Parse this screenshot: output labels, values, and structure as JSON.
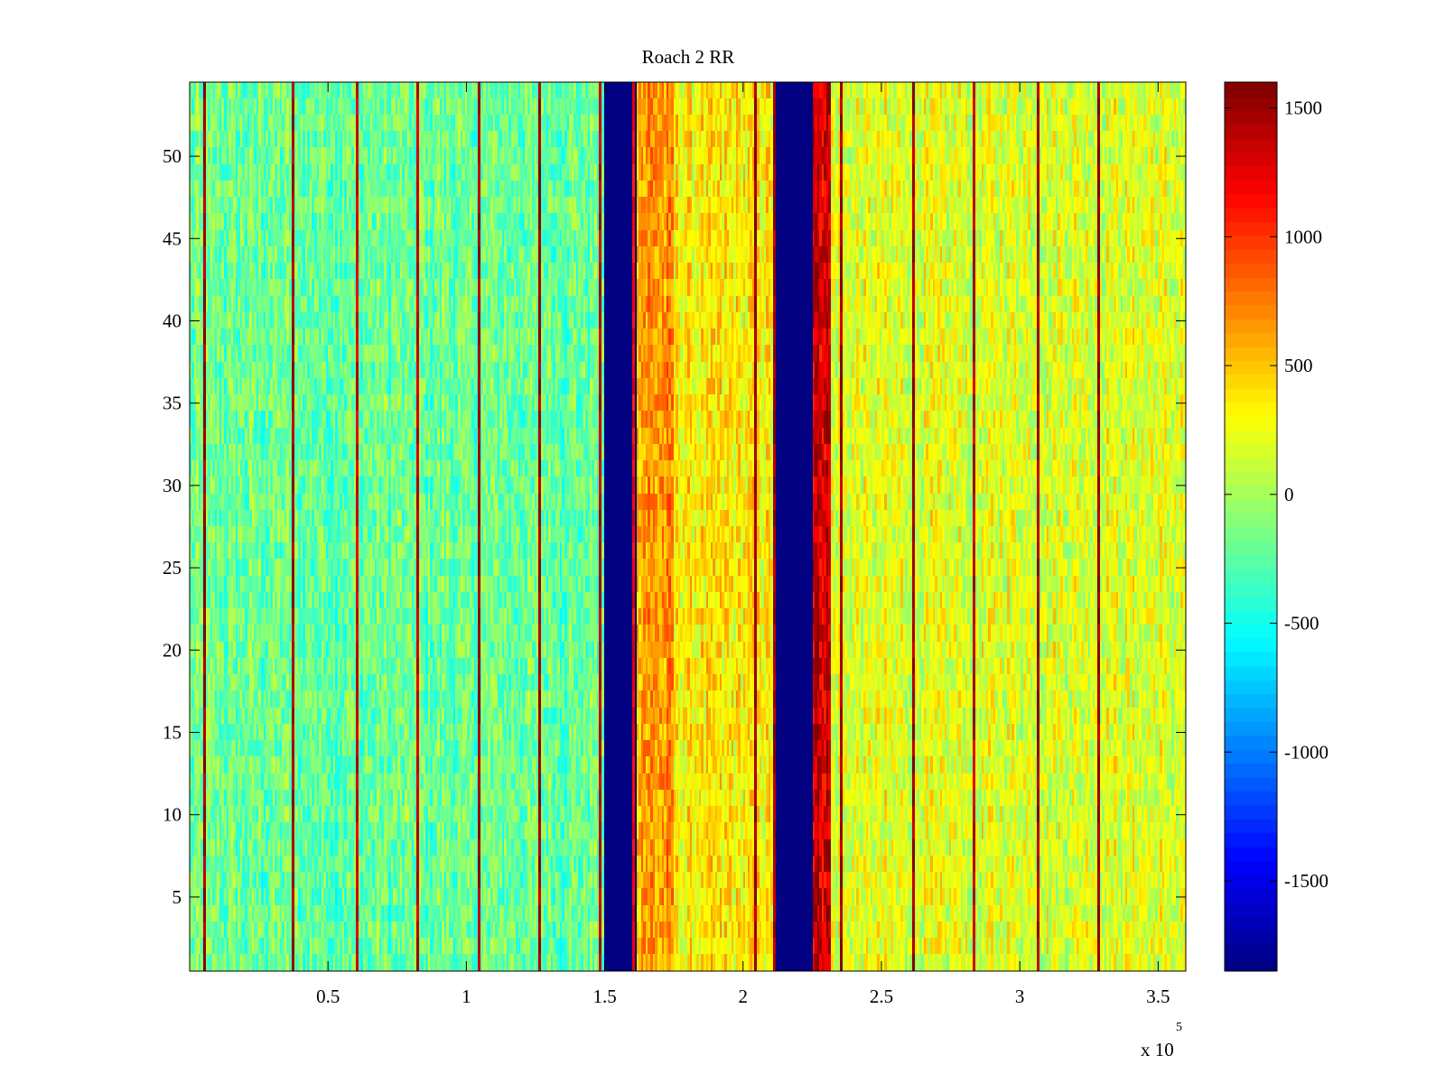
{
  "chart_data": {
    "type": "heatmap",
    "title": "Roach 2 RR",
    "xlabel": "",
    "ylabel": "",
    "x_multiplier_label": {
      "base": "x 10",
      "exponent": "5"
    },
    "xlim": [
      0,
      360000
    ],
    "ylim": [
      0.5,
      54.5
    ],
    "xticks": [
      {
        "value": 50000,
        "label": "0.5"
      },
      {
        "value": 100000,
        "label": "1"
      },
      {
        "value": 150000,
        "label": "1.5"
      },
      {
        "value": 200000,
        "label": "2"
      },
      {
        "value": 250000,
        "label": "2.5"
      },
      {
        "value": 300000,
        "label": "3"
      },
      {
        "value": 350000,
        "label": "3.5"
      }
    ],
    "yticks": [
      {
        "value": 5,
        "label": "5"
      },
      {
        "value": 10,
        "label": "10"
      },
      {
        "value": 15,
        "label": "15"
      },
      {
        "value": 20,
        "label": "20"
      },
      {
        "value": 25,
        "label": "25"
      },
      {
        "value": 30,
        "label": "30"
      },
      {
        "value": 35,
        "label": "35"
      },
      {
        "value": 40,
        "label": "40"
      },
      {
        "value": 45,
        "label": "45"
      },
      {
        "value": 50,
        "label": "50"
      }
    ],
    "colormap": "jet",
    "clim": [
      -1850,
      1600
    ],
    "colorbar_ticks": [
      {
        "value": -1500,
        "label": "-1500"
      },
      {
        "value": -1000,
        "label": "-1000"
      },
      {
        "value": -500,
        "label": "-500"
      },
      {
        "value": 0,
        "label": "0"
      },
      {
        "value": 500,
        "label": "500"
      },
      {
        "value": 1000,
        "label": "1000"
      },
      {
        "value": 1500,
        "label": "1500"
      }
    ],
    "rows": 54,
    "columns": 430,
    "noise_amplitude": 260,
    "column_segments": [
      {
        "x_start": 0,
        "x_end": 150000,
        "level": -200,
        "note": "greenish-cyan region"
      },
      {
        "x_start": 150000,
        "x_end": 162000,
        "level": -1850,
        "note": "dark blue band"
      },
      {
        "x_start": 162000,
        "x_end": 175000,
        "level": 650
      },
      {
        "x_start": 175000,
        "x_end": 212000,
        "level": 350,
        "note": "orange/yellow region"
      },
      {
        "x_start": 212000,
        "x_end": 225000,
        "level": -1850,
        "note": "dark blue band"
      },
      {
        "x_start": 225000,
        "x_end": 232000,
        "level": 1350,
        "note": "dark red band"
      },
      {
        "x_start": 232000,
        "x_end": 360000,
        "level": 200,
        "note": "yellow region"
      }
    ],
    "spike_columns": [
      {
        "x": 5000,
        "value": 1500
      },
      {
        "x": 37000,
        "value": 1500
      },
      {
        "x": 60000,
        "value": 1350
      },
      {
        "x": 82000,
        "value": 1350
      },
      {
        "x": 104000,
        "value": 1500
      },
      {
        "x": 126000,
        "value": 1500
      },
      {
        "x": 148000,
        "value": 1400
      },
      {
        "x": 160000,
        "value": 1200
      },
      {
        "x": 204000,
        "value": 1500
      },
      {
        "x": 211000,
        "value": 1500
      },
      {
        "x": 235000,
        "value": 1500
      },
      {
        "x": 261000,
        "value": 1500
      },
      {
        "x": 283000,
        "value": 1400
      },
      {
        "x": 306000,
        "value": 1500
      },
      {
        "x": 328000,
        "value": 1500
      }
    ]
  }
}
